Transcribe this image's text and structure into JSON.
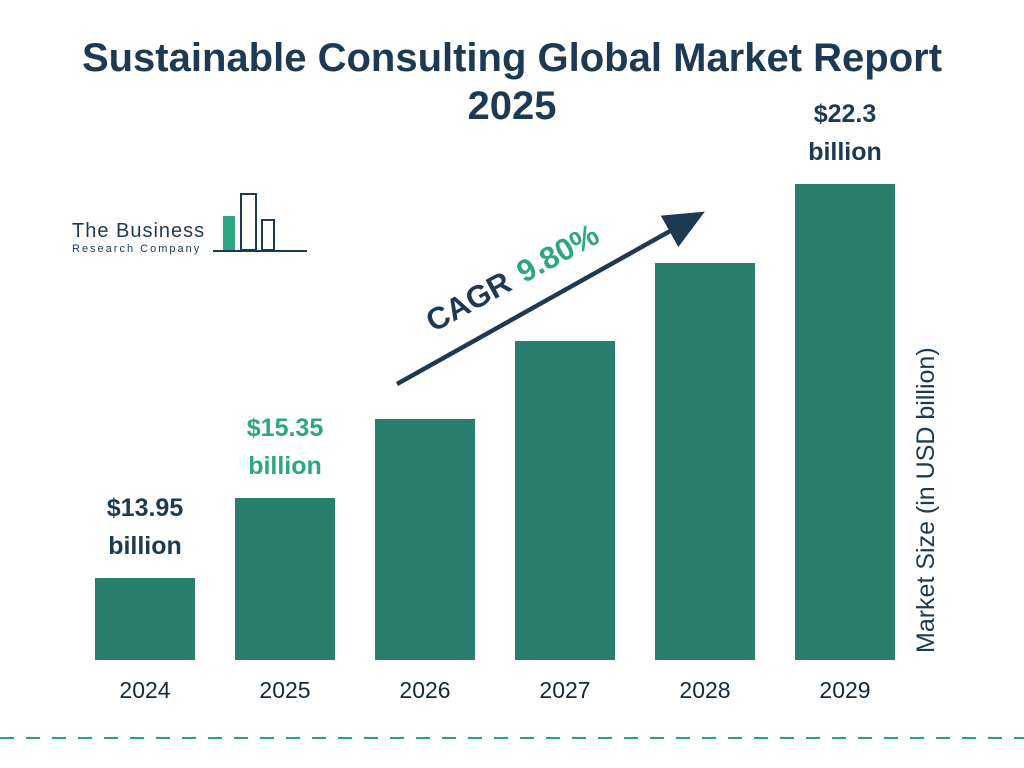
{
  "header": {
    "title_line1": "Sustainable Consulting Global Market Report",
    "title_line2": "2025"
  },
  "logo": {
    "line1": "The Business",
    "line2": "Research Company"
  },
  "cagr": {
    "prefix": "CAGR",
    "value": "9.80%"
  },
  "y_axis_label": "Market Size (in USD billion)",
  "colors": {
    "bar": "#2a7e6d",
    "navy": "#1e3a52",
    "green": "#2ea684",
    "dash": "#2a9d8f"
  },
  "chart_data": {
    "type": "bar",
    "title": "Sustainable Consulting Global Market Report 2025",
    "unit": "USD billion",
    "categories": [
      "2024",
      "2025",
      "2026",
      "2027",
      "2028",
      "2029"
    ],
    "values": [
      13.95,
      15.35,
      16.85,
      18.5,
      20.31,
      22.3
    ],
    "value_labels": {
      "0": {
        "value": "$13.95",
        "unit": "billion",
        "color": "navy"
      },
      "1": {
        "value": "$15.35",
        "unit": "billion",
        "color": "green"
      },
      "5": {
        "value": "$22.3",
        "unit": "billion",
        "color": "navy"
      }
    },
    "ylabel": "Market Size (in USD billion)",
    "cagr": "9.80%",
    "legend": false,
    "grid": false
  }
}
